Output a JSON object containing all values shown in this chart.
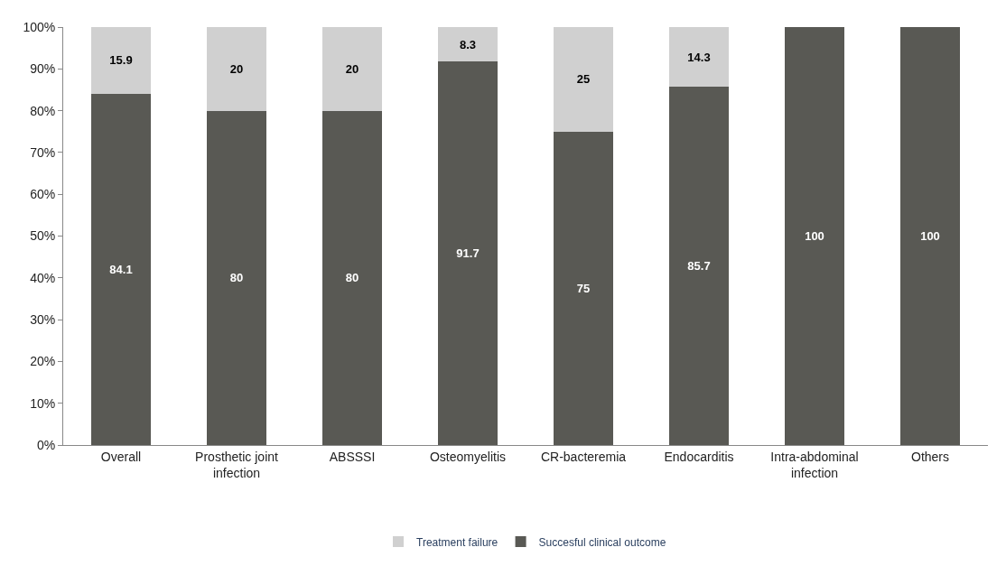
{
  "chart_data": {
    "type": "bar",
    "stacked": true,
    "categories": [
      "Overall",
      "Prosthetic joint infection",
      "ABSSSI",
      "Osteomyelitis",
      "CR-bacteremia",
      "Endocarditis",
      "Intra-abdominal infection",
      "Others"
    ],
    "series": [
      {
        "name": "Succesful clinical outcome",
        "color": "#595954",
        "values": [
          84.1,
          80,
          80,
          91.7,
          75,
          85.7,
          100,
          100
        ],
        "value_labels": [
          "84.1",
          "80",
          "80",
          "91.7",
          "75",
          "85.7",
          "100",
          "100"
        ]
      },
      {
        "name": "Treatment failure",
        "color": "#d0d0d0",
        "values": [
          15.9,
          20,
          20,
          8.3,
          25,
          14.3,
          0,
          0
        ],
        "value_labels": [
          "15.9",
          "20",
          "20",
          "8.3",
          "25",
          "14.3",
          null,
          null
        ]
      }
    ],
    "ylim": [
      0,
      100
    ],
    "yticks": [
      {
        "value": 0,
        "label": "0%"
      },
      {
        "value": 10,
        "label": "10%"
      },
      {
        "value": 20,
        "label": "20%"
      },
      {
        "value": 30,
        "label": "30%"
      },
      {
        "value": 40,
        "label": "40%"
      },
      {
        "value": 50,
        "label": "50%"
      },
      {
        "value": 60,
        "label": "60%"
      },
      {
        "value": 70,
        "label": "70%"
      },
      {
        "value": 80,
        "label": "80%"
      },
      {
        "value": 90,
        "label": "90%"
      },
      {
        "value": 100,
        "label": "100%"
      }
    ],
    "grid": false,
    "legend": "bottom"
  }
}
